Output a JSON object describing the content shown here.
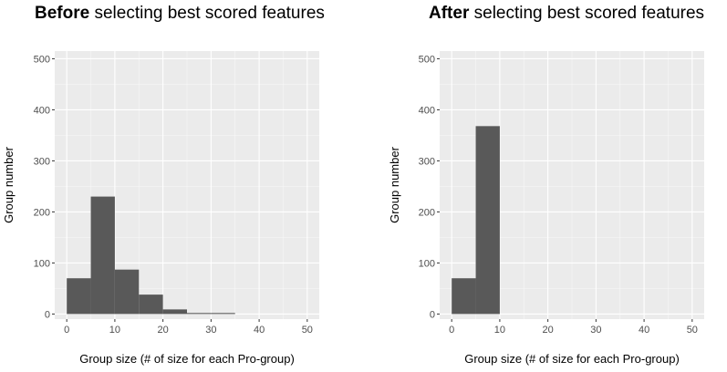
{
  "chart_data": [
    {
      "type": "bar",
      "title_bold": "Before",
      "title_rest": " selecting best scored features",
      "xlabel": "Group size (# of size for each Pro-group)",
      "ylabel": "Group number",
      "xlim": [
        -2.5,
        52.5
      ],
      "ylim": [
        -10,
        515
      ],
      "xticks": [
        0,
        10,
        20,
        30,
        40,
        50
      ],
      "yticks": [
        0,
        100,
        200,
        300,
        400,
        500
      ],
      "bin_width": 5,
      "bins": [
        0,
        5,
        10,
        15,
        20,
        25,
        30
      ],
      "values": [
        70,
        230,
        87,
        38,
        9,
        2,
        2
      ],
      "bar_color": "#595959",
      "panel_bg": "#ebebeb",
      "grid": true
    },
    {
      "type": "bar",
      "title_bold": "After",
      "title_rest": " selecting best scored features",
      "xlabel": "Group size (# of size for each Pro-group)",
      "ylabel": "Group number",
      "xlim": [
        -2.5,
        52.5
      ],
      "ylim": [
        -10,
        515
      ],
      "xticks": [
        0,
        10,
        20,
        30,
        40,
        50
      ],
      "yticks": [
        0,
        100,
        200,
        300,
        400,
        500
      ],
      "bin_width": 5,
      "bins": [
        0,
        5
      ],
      "values": [
        70,
        368
      ],
      "bar_color": "#595959",
      "panel_bg": "#ebebeb",
      "grid": true
    }
  ]
}
